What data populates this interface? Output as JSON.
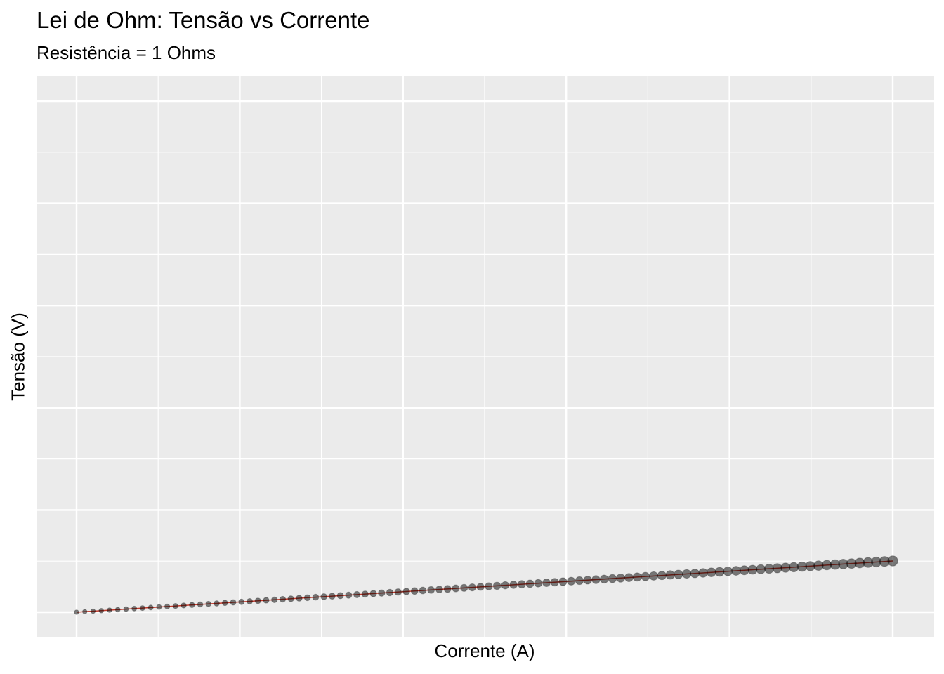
{
  "chart_data": {
    "type": "scatter",
    "title": "Lei de Ohm: Tensão vs Corrente",
    "subtitle": "Resistência = 1 Ohms",
    "xlabel": "Corrente (A)",
    "ylabel": "Tensão (V)",
    "x_range": [
      0,
      10
    ],
    "y_range": [
      0,
      10
    ],
    "grid": true,
    "legend": "none",
    "point_size_encodes": "x",
    "line_color": "#c0392b",
    "point_color": "#000000",
    "panel_background": "#ebebeb",
    "n_points": 100,
    "series": [
      {
        "x_start": 0,
        "x_end": 1,
        "slope": 1,
        "intercept": 0
      }
    ]
  }
}
